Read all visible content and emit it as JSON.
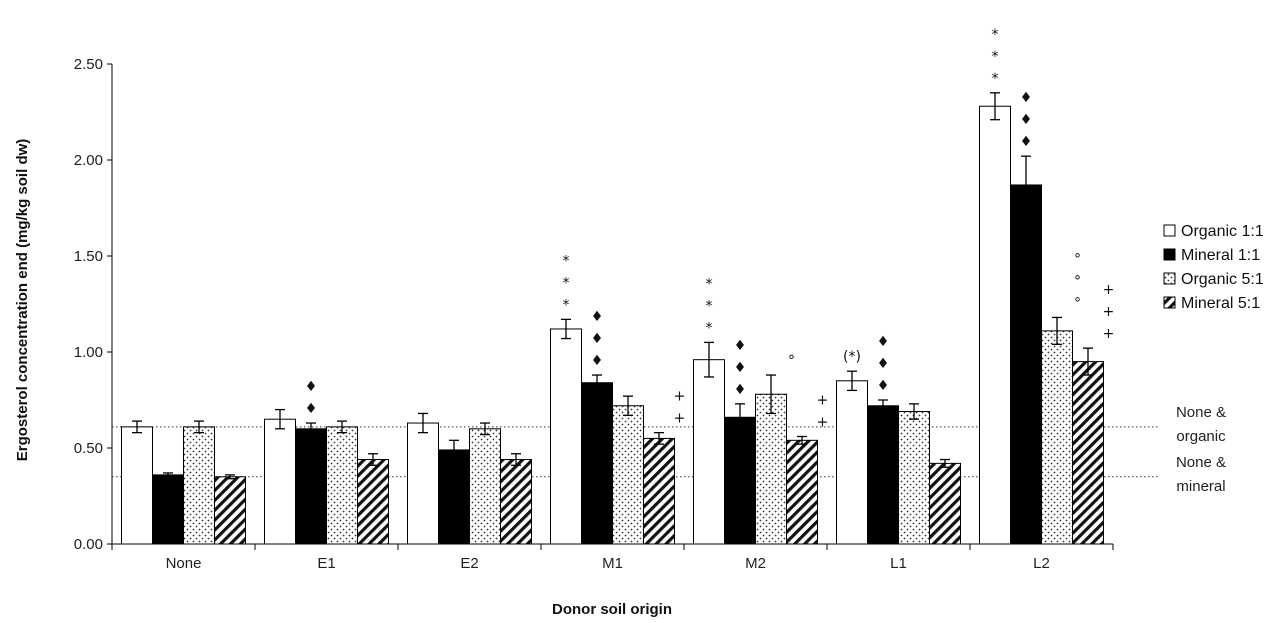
{
  "chart_data": {
    "type": "bar",
    "title": "",
    "xlabel": "Donor soil origin",
    "ylabel": "Ergosterol concentration end (mg/kg soil dw)",
    "ylim": [
      0,
      2.5
    ],
    "yticks": [
      "0.00",
      "0.50",
      "1.00",
      "1.50",
      "2.00",
      "2.50"
    ],
    "categories": [
      "None",
      "E1",
      "E2",
      "M1",
      "M2",
      "L1",
      "L2"
    ],
    "legend_position": "right",
    "series": [
      {
        "name": "Organic 1:1",
        "pattern": "white",
        "values": [
          0.61,
          0.65,
          0.63,
          1.12,
          0.96,
          0.85,
          2.28
        ],
        "errors": [
          0.03,
          0.05,
          0.05,
          0.05,
          0.09,
          0.05,
          0.07
        ],
        "marks": [
          "",
          "",
          "",
          "*\n*\n*",
          "*\n*\n*",
          "(*)",
          "*\n*\n*"
        ]
      },
      {
        "name": "Mineral 1:1",
        "pattern": "black",
        "values": [
          0.36,
          0.6,
          0.49,
          0.84,
          0.66,
          0.72,
          1.87
        ],
        "errors": [
          0.01,
          0.03,
          0.05,
          0.04,
          0.07,
          0.03,
          0.15
        ],
        "marks": [
          "",
          "♦\n♦",
          "",
          "♦\n♦\n♦",
          "♦\n♦\n♦",
          "♦\n♦\n♦",
          "♦\n♦\n♦"
        ]
      },
      {
        "name": "Organic 5:1",
        "pattern": "dotted",
        "values": [
          0.61,
          0.61,
          0.6,
          0.72,
          0.78,
          0.69,
          1.11
        ],
        "errors": [
          0.03,
          0.03,
          0.03,
          0.05,
          0.1,
          0.04,
          0.07
        ],
        "marks": [
          "",
          "",
          "",
          "",
          "°",
          "",
          "°\n°\n°"
        ]
      },
      {
        "name": "Mineral 5:1",
        "pattern": "hatched",
        "values": [
          0.35,
          0.44,
          0.44,
          0.55,
          0.54,
          0.42,
          0.95
        ],
        "errors": [
          0.01,
          0.03,
          0.03,
          0.03,
          0.02,
          0.02,
          0.07
        ],
        "marks": [
          "",
          "",
          "",
          "+\n+",
          "+\n+",
          "",
          "+\n+\n+"
        ]
      }
    ],
    "reference_lines": [
      {
        "value": 0.61,
        "label_line1": "None &",
        "label_line2": "organic"
      },
      {
        "value": 0.35,
        "label_line1": "None &",
        "label_line2": "mineral"
      }
    ]
  }
}
